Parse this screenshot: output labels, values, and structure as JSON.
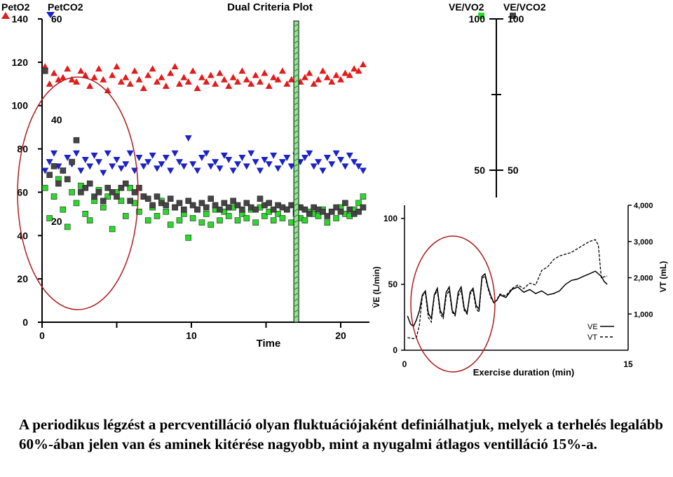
{
  "chart_data": [
    {
      "type": "scatter",
      "title": "Dual Criteria Plot",
      "xlabel": "Time",
      "left_axis_labels": [
        "PetO2",
        "PetCO2"
      ],
      "right_axis_labels": [
        "VE/VO2",
        "VE/VCO2"
      ],
      "xlim": [
        0,
        22
      ],
      "ylim_left": [
        0,
        140
      ],
      "x_ticks": [
        0,
        10,
        20
      ],
      "y_ticks_peto2": [
        0,
        20,
        40,
        60,
        80,
        100,
        120,
        140
      ],
      "y_ticks_petco2": [
        20,
        40,
        60
      ],
      "y_ticks_right": [
        50,
        100
      ],
      "vertical_marker_x": 17,
      "series": [
        {
          "name": "PetO2",
          "marker": "triangle-up",
          "color": "#e21b1b",
          "x": [
            0.2,
            0.5,
            0.8,
            1.1,
            1.4,
            1.7,
            2.0,
            2.3,
            2.6,
            2.9,
            3.2,
            3.5,
            3.8,
            4.1,
            4.4,
            4.7,
            5.0,
            5.3,
            5.6,
            5.9,
            6.2,
            6.5,
            6.8,
            7.1,
            7.4,
            7.7,
            8.0,
            8.3,
            8.6,
            8.9,
            9.2,
            9.5,
            9.8,
            10.1,
            10.4,
            10.7,
            11.0,
            11.3,
            11.6,
            11.9,
            12.2,
            12.5,
            12.8,
            13.1,
            13.4,
            13.7,
            14.0,
            14.3,
            14.6,
            14.9,
            15.2,
            15.5,
            15.8,
            16.1,
            16.4,
            16.7,
            17.0,
            17.3,
            17.6,
            17.9,
            18.2,
            18.5,
            18.8,
            19.1,
            19.4,
            19.7,
            20.0,
            20.3,
            20.6,
            20.9,
            21.2,
            21.5
          ],
          "y": [
            118,
            110,
            115,
            112,
            113,
            117,
            112,
            111,
            116,
            114,
            109,
            113,
            117,
            112,
            107,
            114,
            118,
            111,
            113,
            110,
            116,
            112,
            108,
            114,
            117,
            111,
            113,
            109,
            115,
            118,
            110,
            113,
            111,
            116,
            108,
            113,
            111,
            114,
            110,
            115,
            112,
            109,
            113,
            111,
            116,
            112,
            110,
            114,
            111,
            115,
            109,
            113,
            112,
            116,
            110,
            112,
            114,
            111,
            113,
            115,
            110,
            112,
            116,
            113,
            111,
            114,
            112,
            115,
            114,
            117,
            116,
            119
          ]
        },
        {
          "name": "PetCO2",
          "marker": "triangle-down",
          "color": "#1a22c8",
          "x": [
            0.2,
            0.5,
            0.8,
            1.1,
            1.4,
            1.7,
            2.0,
            2.3,
            2.6,
            2.9,
            3.2,
            3.5,
            3.8,
            4.1,
            4.4,
            4.7,
            5.0,
            5.3,
            5.6,
            5.9,
            6.2,
            6.5,
            6.8,
            7.1,
            7.4,
            7.7,
            8.0,
            8.3,
            8.6,
            8.9,
            9.2,
            9.5,
            9.8,
            10.1,
            10.4,
            10.7,
            11.0,
            11.3,
            11.6,
            11.9,
            12.2,
            12.5,
            12.8,
            13.1,
            13.4,
            13.7,
            14.0,
            14.3,
            14.6,
            14.9,
            15.2,
            15.5,
            15.8,
            16.1,
            16.4,
            16.7,
            17.0,
            17.3,
            17.6,
            17.9,
            18.2,
            18.5,
            18.8,
            19.1,
            19.4,
            19.7,
            20.0,
            20.3,
            20.6,
            20.9,
            21.2,
            21.5
          ],
          "y": [
            70,
            74,
            78,
            72,
            70,
            76,
            73,
            78,
            70,
            75,
            72,
            77,
            74,
            69,
            78,
            72,
            75,
            71,
            73,
            78,
            70,
            76,
            72,
            74,
            77,
            71,
            73,
            76,
            70,
            78,
            74,
            72,
            85,
            73,
            70,
            76,
            78,
            72,
            74,
            71,
            77,
            75,
            70,
            73,
            76,
            72,
            78,
            74,
            70,
            75,
            73,
            77,
            71,
            74,
            76,
            72,
            77,
            74,
            76,
            78,
            72,
            74,
            70,
            76,
            73,
            78,
            75,
            72,
            77,
            74,
            72,
            70
          ]
        },
        {
          "name": "VE/VO2",
          "marker": "square",
          "color": "#2bd82b",
          "x": [
            0.2,
            0.5,
            0.8,
            1.1,
            1.4,
            1.7,
            2.0,
            2.3,
            2.6,
            2.9,
            3.2,
            3.5,
            3.8,
            4.1,
            4.4,
            4.7,
            5.0,
            5.3,
            5.6,
            5.9,
            6.2,
            6.5,
            6.8,
            7.1,
            7.4,
            7.7,
            8.0,
            8.3,
            8.6,
            8.9,
            9.2,
            9.5,
            9.8,
            10.1,
            10.4,
            10.7,
            11.0,
            11.3,
            11.6,
            11.9,
            12.2,
            12.5,
            12.8,
            13.1,
            13.4,
            13.7,
            14.0,
            14.3,
            14.6,
            14.9,
            15.2,
            15.5,
            15.8,
            16.1,
            16.4,
            16.7,
            17.0,
            17.3,
            17.6,
            17.9,
            18.2,
            18.5,
            18.8,
            19.1,
            19.4,
            19.7,
            20.0,
            20.3,
            20.6,
            20.9,
            21.2,
            21.5
          ],
          "y": [
            62,
            48,
            58,
            66,
            52,
            44,
            60,
            55,
            63,
            50,
            47,
            56,
            61,
            53,
            58,
            43,
            60,
            56,
            49,
            62,
            55,
            51,
            58,
            47,
            53,
            49,
            56,
            51,
            45,
            53,
            47,
            50,
            39,
            48,
            52,
            46,
            50,
            45,
            52,
            47,
            51,
            49,
            53,
            47,
            50,
            48,
            52,
            46,
            53,
            49,
            51,
            47,
            50,
            48,
            52,
            46,
            50,
            48,
            47,
            51,
            50,
            49,
            52,
            46,
            51,
            48,
            53,
            50,
            49,
            52,
            55,
            58
          ]
        },
        {
          "name": "VE/VCO2",
          "marker": "square",
          "color": "#454545",
          "x": [
            0.2,
            0.5,
            0.8,
            1.1,
            1.4,
            1.7,
            2.0,
            2.3,
            2.6,
            2.9,
            3.2,
            3.5,
            3.8,
            4.1,
            4.4,
            4.7,
            5.0,
            5.3,
            5.6,
            5.9,
            6.2,
            6.5,
            6.8,
            7.1,
            7.4,
            7.7,
            8.0,
            8.3,
            8.6,
            8.9,
            9.2,
            9.5,
            9.8,
            10.1,
            10.4,
            10.7,
            11.0,
            11.3,
            11.6,
            11.9,
            12.2,
            12.5,
            12.8,
            13.1,
            13.4,
            13.7,
            14.0,
            14.3,
            14.6,
            14.9,
            15.2,
            15.5,
            15.8,
            16.1,
            16.4,
            16.7,
            17.0,
            17.3,
            17.6,
            17.9,
            18.2,
            18.5,
            18.8,
            19.1,
            19.4,
            19.7,
            20.0,
            20.3,
            20.6,
            20.9,
            21.2,
            21.5
          ],
          "y": [
            116,
            68,
            72,
            64,
            70,
            66,
            74,
            84,
            60,
            62,
            64,
            58,
            60,
            56,
            62,
            60,
            58,
            62,
            64,
            56,
            60,
            62,
            58,
            57,
            54,
            58,
            55,
            54,
            57,
            53,
            55,
            52,
            56,
            54,
            52,
            55,
            53,
            57,
            54,
            52,
            55,
            53,
            56,
            54,
            52,
            55,
            53,
            52,
            57,
            54,
            55,
            52,
            54,
            53,
            52,
            54,
            51,
            53,
            52,
            50,
            53,
            52,
            51,
            49,
            51,
            53,
            51,
            55,
            52,
            50,
            51,
            53
          ]
        }
      ]
    },
    {
      "type": "line",
      "xlabel": "Exercise duration (min)",
      "ylabel_left": "V̇E (L/min)",
      "ylabel_right": "VT (mL)",
      "xlim": [
        0,
        15
      ],
      "ylim_left": [
        0,
        110
      ],
      "ylim_right": [
        0,
        4000
      ],
      "x_ticks": [
        0,
        15
      ],
      "y_ticks_left": [
        0,
        50,
        100
      ],
      "y_ticks_right": [
        "1,000",
        "2,000",
        "3,000",
        "4,000"
      ],
      "legend": "bottom-right",
      "series": [
        {
          "name": "VE",
          "style": "solid",
          "x": [
            0.2,
            0.4,
            0.6,
            0.8,
            1.0,
            1.2,
            1.4,
            1.6,
            1.8,
            2.0,
            2.2,
            2.4,
            2.6,
            2.8,
            3.0,
            3.2,
            3.4,
            3.6,
            3.8,
            4.0,
            4.2,
            4.4,
            4.6,
            4.8,
            5.0,
            5.2,
            5.4,
            5.6,
            5.8,
            6.0,
            6.2,
            6.4,
            6.8,
            7.2,
            7.6,
            8.0,
            8.4,
            8.8,
            9.2,
            9.6,
            10.0,
            10.4,
            10.8,
            11.2,
            11.6,
            12.0,
            12.4,
            12.8,
            13.2,
            13.4,
            13.6
          ],
          "y": [
            26,
            20,
            18,
            23,
            30,
            42,
            45,
            28,
            24,
            42,
            47,
            30,
            26,
            44,
            48,
            30,
            27,
            44,
            48,
            32,
            28,
            44,
            47,
            34,
            31,
            56,
            58,
            48,
            41,
            36,
            38,
            42,
            40,
            46,
            48,
            44,
            46,
            43,
            45,
            42,
            43,
            45,
            50,
            53,
            54,
            56,
            58,
            60,
            56,
            52,
            50
          ]
        },
        {
          "name": "VT",
          "style": "dashed",
          "x": [
            0.2,
            0.4,
            0.6,
            0.8,
            1.0,
            1.2,
            1.4,
            1.6,
            1.8,
            2.0,
            2.2,
            2.4,
            2.6,
            2.8,
            3.0,
            3.2,
            3.4,
            3.6,
            3.8,
            4.0,
            4.2,
            4.4,
            4.6,
            4.8,
            5.0,
            5.2,
            5.4,
            5.6,
            5.8,
            6.0,
            6.2,
            6.4,
            6.8,
            7.2,
            7.6,
            8.0,
            8.4,
            8.8,
            9.2,
            9.6,
            10.0,
            10.4,
            10.8,
            11.2,
            11.6,
            12.0,
            12.4,
            12.8,
            13.0,
            13.2,
            13.6
          ],
          "y": [
            350,
            330,
            320,
            350,
            700,
            1500,
            1580,
            900,
            780,
            1500,
            1650,
            1000,
            880,
            1500,
            1650,
            1050,
            950,
            1500,
            1650,
            1100,
            1000,
            1550,
            1650,
            1150,
            1050,
            1980,
            2050,
            1700,
            1450,
            1300,
            1400,
            1550,
            1500,
            1700,
            1800,
            1700,
            1850,
            1800,
            2200,
            2300,
            2500,
            2600,
            2650,
            2700,
            2800,
            2900,
            3000,
            3050,
            2900,
            2000,
            2050
          ]
        }
      ],
      "legend_labels": [
        "VE",
        "VT"
      ]
    }
  ],
  "caption": "A periodikus légzést a percventilláció olyan fluktuációjaként definiálhatjuk, melyek a terhelés legalább 60%-ában jelen van és aminek kitérése nagyobb, mint a nyugalmi átlagos ventilláció 15%-a.",
  "accents": {
    "annotation_ellipse": "#b01c1c",
    "marker_bar_green": "#2fa832",
    "marker_bar_stripe": "#9be09b"
  }
}
